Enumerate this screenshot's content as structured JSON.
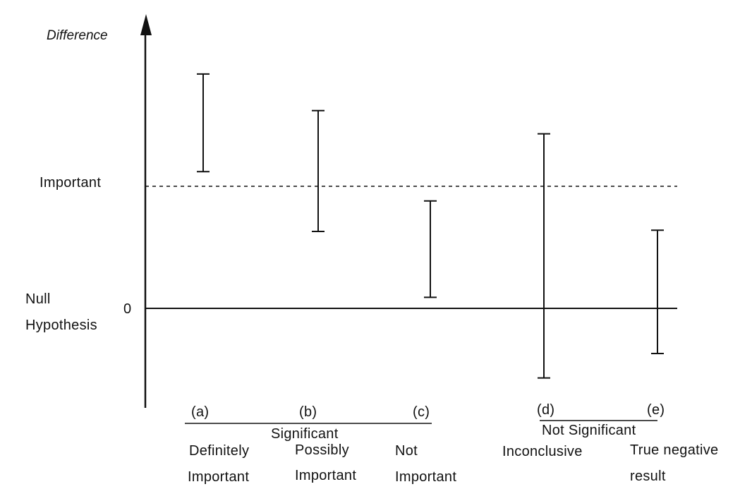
{
  "y_axis": {
    "title": "Difference",
    "important_label": "Important",
    "zero_label": "0",
    "null_label_line1": "Null",
    "null_label_line2": "Hypothesis"
  },
  "thresholds": {
    "null_value": 0,
    "important_value": 1
  },
  "intervals": [
    {
      "id": "a",
      "label": "(a)",
      "desc1": "Definitely",
      "desc2": "Important",
      "low": 1.12,
      "high": 1.92
    },
    {
      "id": "b",
      "label": "(b)",
      "desc1": "Possibly",
      "desc2": "Important",
      "low": 0.63,
      "high": 1.62
    },
    {
      "id": "c",
      "label": "(c)",
      "desc1": "Not",
      "desc2": "Important",
      "low": 0.09,
      "high": 0.88
    },
    {
      "id": "d",
      "label": "(d)",
      "desc1": "Inconclusive",
      "desc2": "",
      "low": -0.57,
      "high": 1.43
    },
    {
      "id": "e",
      "label": "(e)",
      "desc1": "True negative",
      "desc2": "result",
      "low": -0.37,
      "high": 0.64
    }
  ],
  "groups": [
    {
      "label": "Significant",
      "members": [
        "a",
        "b",
        "c"
      ]
    },
    {
      "label": "Not Significant",
      "members": [
        "d",
        "e"
      ]
    }
  ],
  "colors": {
    "ink": "#111111",
    "background": "#ffffff"
  }
}
